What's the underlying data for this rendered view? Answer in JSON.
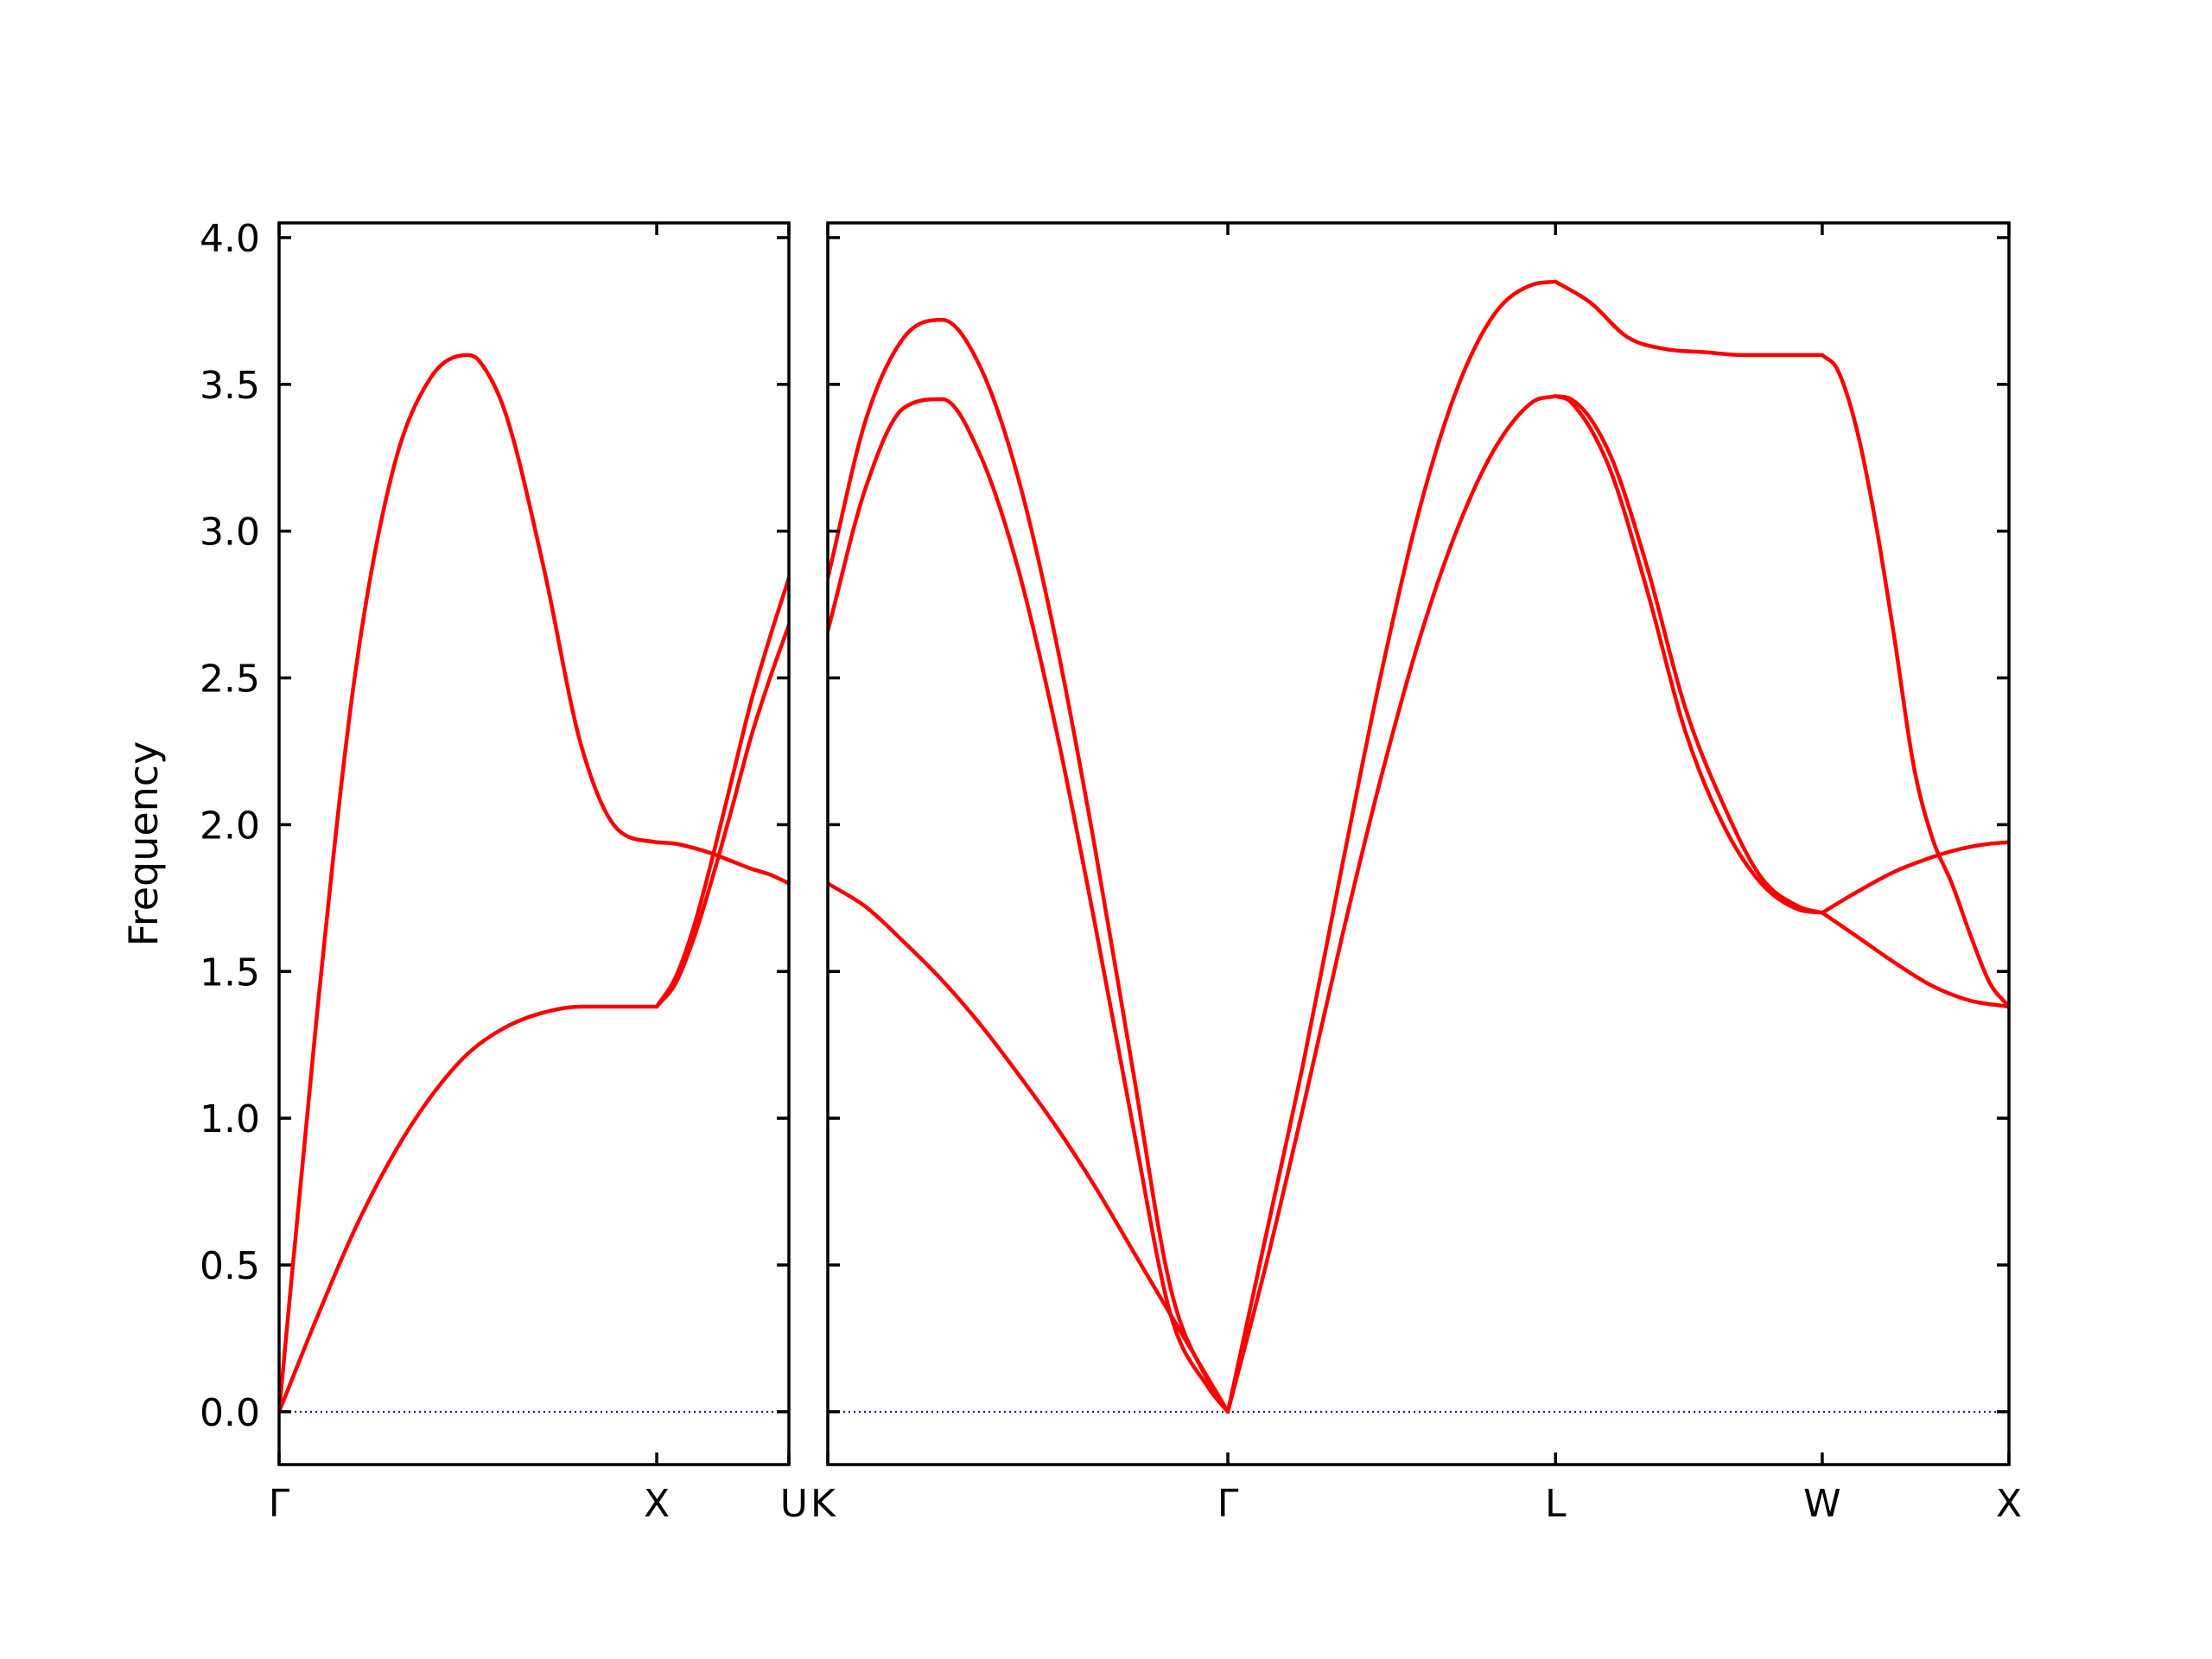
{
  "colors": {
    "band": "#ff0000",
    "zero_line": "#00008b",
    "axes": "#000000"
  },
  "chart_data": {
    "type": "line",
    "title": "",
    "xlabel": "",
    "ylabel": "Frequency",
    "ylim": [
      -0.18,
      4.05
    ],
    "yticks": [
      "0.0",
      "0.5",
      "1.0",
      "1.5",
      "2.0",
      "2.5",
      "3.0",
      "3.5",
      "4.0"
    ],
    "zero_line": {
      "y": 0.0,
      "style": "dotted"
    },
    "panels": [
      {
        "xlim": [
          0,
          1.35
        ],
        "ticks": [
          {
            "x": 0,
            "label": "Γ"
          },
          {
            "x": 1.0,
            "label": "X"
          },
          {
            "x": 1.35,
            "label": "U"
          }
        ],
        "series": [
          {
            "x": [
              0,
              0.1,
              0.2,
              0.3,
              0.4,
              0.5,
              0.6,
              0.7,
              0.8,
              0.9,
              1.0
            ],
            "y": [
              0,
              0.32,
              0.62,
              0.87,
              1.07,
              1.22,
              1.31,
              1.36,
              1.38,
              1.38,
              1.38
            ]
          },
          {
            "x": [
              0,
              0.1,
              0.2,
              0.3,
              0.4,
              0.5,
              0.53,
              0.6,
              0.7,
              0.8,
              0.9,
              1.0
            ],
            "y": [
              0,
              1.35,
              2.5,
              3.2,
              3.52,
              3.6,
              3.58,
              3.4,
              2.88,
              2.27,
              1.98,
              1.94
            ]
          },
          {
            "x": [
              1.0,
              1.05,
              1.1,
              1.15,
              1.2,
              1.25,
              1.3,
              1.35
            ],
            "y": [
              1.94,
              1.935,
              1.92,
              1.9,
              1.875,
              1.85,
              1.83,
              1.8
            ]
          },
          {
            "x": [
              1.0,
              1.05,
              1.1,
              1.15,
              1.2,
              1.25,
              1.3,
              1.35
            ],
            "y": [
              1.38,
              1.48,
              1.66,
              1.9,
              2.16,
              2.42,
              2.64,
              2.84
            ]
          },
          {
            "x": [
              1.0,
              1.05,
              1.1,
              1.15,
              1.2,
              1.25,
              1.3,
              1.35
            ],
            "y": [
              1.38,
              1.46,
              1.62,
              1.83,
              2.06,
              2.3,
              2.5,
              2.68
            ]
          }
        ]
      },
      {
        "xlim": [
          0,
          3.1
        ],
        "ticks": [
          {
            "x": 0,
            "label": "K"
          },
          {
            "x": 1.05,
            "label": "Γ"
          },
          {
            "x": 1.91,
            "label": "L"
          },
          {
            "x": 2.61,
            "label": "W"
          },
          {
            "x": 3.1,
            "label": "X"
          }
        ],
        "series": [
          {
            "x": [
              0,
              0.1,
              0.2,
              0.3,
              0.4,
              0.5,
              0.6,
              0.7,
              0.8,
              0.9,
              1.0,
              1.05
            ],
            "y": [
              1.8,
              1.72,
              1.6,
              1.47,
              1.32,
              1.15,
              0.97,
              0.77,
              0.55,
              0.33,
              0.11,
              0
            ]
          },
          {
            "x": [
              0,
              0.1,
              0.2,
              0.3,
              0.4,
              0.5,
              0.6,
              0.7,
              0.8,
              0.9,
              1.0,
              1.05
            ],
            "y": [
              2.66,
              3.15,
              3.42,
              3.45,
              3.26,
              2.87,
              2.32,
              1.67,
              0.98,
              0.33,
              0.08,
              0
            ]
          },
          {
            "x": [
              0,
              0.1,
              0.2,
              0.3,
              0.4,
              0.5,
              0.6,
              0.7,
              0.8,
              0.9,
              1.0,
              1.05
            ],
            "y": [
              2.84,
              3.38,
              3.66,
              3.72,
              3.56,
              3.18,
              2.62,
              1.93,
              1.17,
              0.42,
              0.1,
              0
            ]
          },
          {
            "x": [
              1.05,
              1.15,
              1.25,
              1.35,
              1.45,
              1.55,
              1.65,
              1.75,
              1.85,
              1.91
            ],
            "y": [
              0,
              0.5,
              1.05,
              1.62,
              2.15,
              2.62,
              3.0,
              3.28,
              3.44,
              3.46
            ]
          },
          {
            "x": [
              1.05,
              1.15,
              1.25,
              1.35,
              1.45,
              1.55,
              1.65,
              1.75,
              1.85,
              1.91
            ],
            "y": [
              0,
              0.6,
              1.2,
              1.86,
              2.5,
              3.06,
              3.48,
              3.74,
              3.84,
              3.85
            ]
          },
          {
            "x": [
              1.91,
              1.95,
              2.05,
              2.15,
              2.25,
              2.35,
              2.45,
              2.55,
              2.61
            ],
            "y": [
              3.46,
              3.45,
              3.27,
              2.88,
              2.4,
              2.07,
              1.82,
              1.72,
              1.7
            ]
          },
          {
            "x": [
              1.91,
              1.95,
              2.05,
              2.15,
              2.25,
              2.35,
              2.45,
              2.55,
              2.61
            ],
            "y": [
              3.46,
              3.44,
              3.22,
              2.8,
              2.32,
              2.0,
              1.8,
              1.71,
              1.7
            ]
          },
          {
            "x": [
              1.91,
              2.0,
              2.1,
              2.2,
              2.3,
              2.4,
              2.5,
              2.61
            ],
            "y": [
              3.85,
              3.78,
              3.66,
              3.62,
              3.61,
              3.6,
              3.6,
              3.6
            ]
          },
          {
            "x": [
              2.61,
              2.7,
              2.8,
              2.9,
              2.95,
              3.0,
              3.05,
              3.1
            ],
            "y": [
              1.7,
              1.77,
              1.84,
              1.89,
              1.91,
              1.925,
              1.935,
              1.94
            ]
          },
          {
            "x": [
              2.61,
              2.7,
              2.8,
              2.9,
              3.0,
              3.1
            ],
            "y": [
              1.7,
              1.62,
              1.53,
              1.45,
              1.4,
              1.38
            ]
          },
          {
            "x": [
              2.61,
              2.65,
              2.7,
              2.75,
              2.8,
              2.85,
              2.9,
              2.95,
              3.0,
              3.05,
              3.1
            ],
            "y": [
              3.6,
              3.55,
              3.35,
              3.03,
              2.63,
              2.2,
              1.95,
              1.8,
              1.62,
              1.46,
              1.38
            ]
          }
        ]
      }
    ]
  }
}
